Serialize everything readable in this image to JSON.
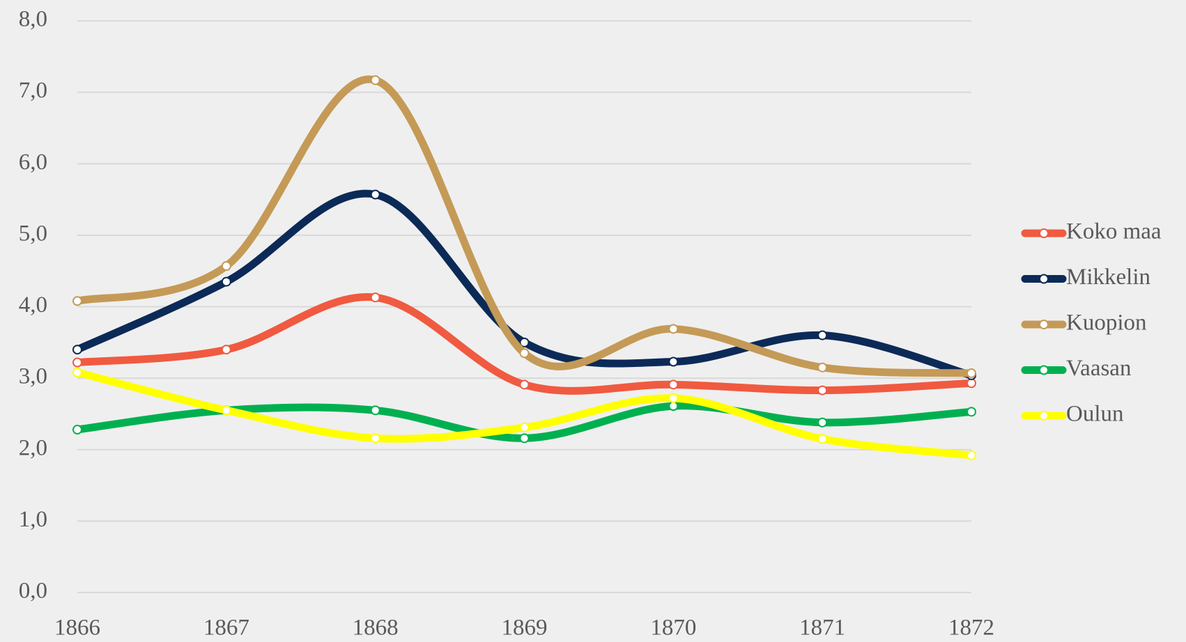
{
  "chart_data": {
    "type": "line",
    "x": [
      1866,
      1867,
      1868,
      1869,
      1870,
      1871,
      1872
    ],
    "series": [
      {
        "name": "Koko maa",
        "color": "#f05a40",
        "values": [
          3.22,
          3.4,
          4.13,
          2.91,
          2.91,
          2.83,
          2.93
        ]
      },
      {
        "name": "Mikkelin",
        "color": "#0c2a57",
        "values": [
          3.4,
          4.35,
          5.57,
          3.5,
          3.23,
          3.6,
          3.04
        ]
      },
      {
        "name": "Kuopion",
        "color": "#c49a56",
        "values": [
          4.08,
          4.57,
          7.17,
          3.35,
          3.69,
          3.15,
          3.07
        ]
      },
      {
        "name": "Vaasan",
        "color": "#00b050",
        "values": [
          2.28,
          2.55,
          2.55,
          2.16,
          2.61,
          2.38,
          2.53
        ]
      },
      {
        "name": "Oulun",
        "color": "#ffff00",
        "values": [
          3.08,
          2.55,
          2.16,
          2.31,
          2.72,
          2.15,
          1.92
        ]
      }
    ],
    "xlim": [
      1866,
      1872
    ],
    "xticks": [
      1866,
      1867,
      1868,
      1869,
      1870,
      1871,
      1872
    ],
    "ylim": [
      0,
      8
    ],
    "yticks": [
      {
        "value": 0,
        "label": "0,0"
      },
      {
        "value": 1,
        "label": "1,0"
      },
      {
        "value": 2,
        "label": "2,0"
      },
      {
        "value": 3,
        "label": "3,0"
      },
      {
        "value": 4,
        "label": "4,0"
      },
      {
        "value": 5,
        "label": "5,0"
      },
      {
        "value": 6,
        "label": "6,0"
      },
      {
        "value": 7,
        "label": "7,0"
      },
      {
        "value": 8,
        "label": "8,0"
      }
    ],
    "grid": true,
    "smooth": true,
    "legend": "right"
  }
}
